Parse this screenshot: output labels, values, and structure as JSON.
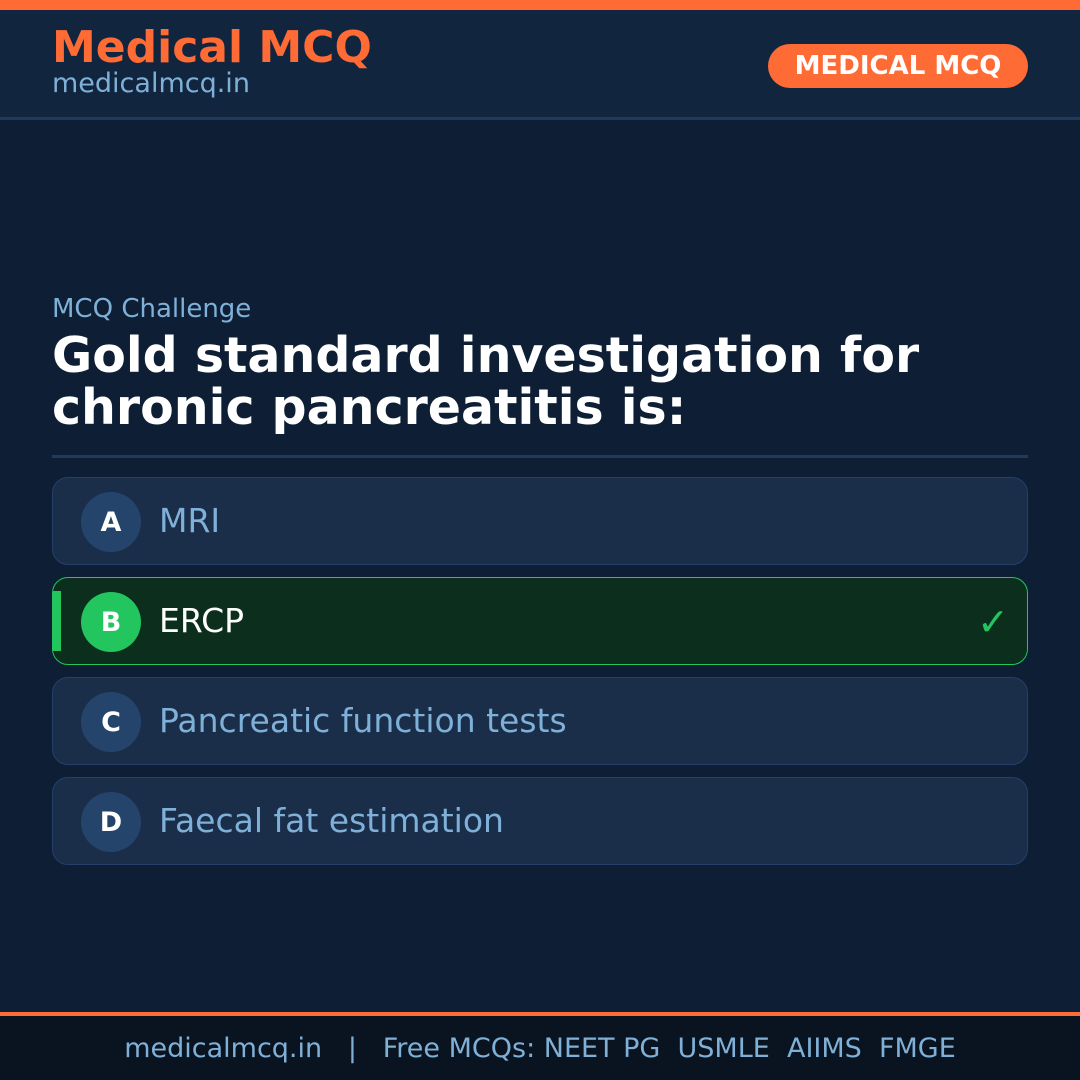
{
  "header": {
    "brand": "Medical MCQ",
    "site": "medicalmcq.in",
    "badge": "MEDICAL MCQ"
  },
  "question": {
    "kicker": "MCQ Challenge",
    "text": "Gold standard investigation for chronic pancreatitis is:"
  },
  "options": [
    {
      "letter": "A",
      "text": "MRI",
      "correct": false
    },
    {
      "letter": "B",
      "text": "ERCP",
      "correct": true
    },
    {
      "letter": "C",
      "text": "Pancreatic function tests",
      "correct": false
    },
    {
      "letter": "D",
      "text": "Faecal fat estimation",
      "correct": false
    }
  ],
  "correct_icon": "check-icon",
  "footer": {
    "text": "medicalmcq.in   |   Free MCQs: NEET PG  USMLE  AIIMS  FMGE"
  },
  "colors": {
    "accent": "#ff6b35",
    "correct": "#22c55e",
    "background": "#0e1f35"
  }
}
